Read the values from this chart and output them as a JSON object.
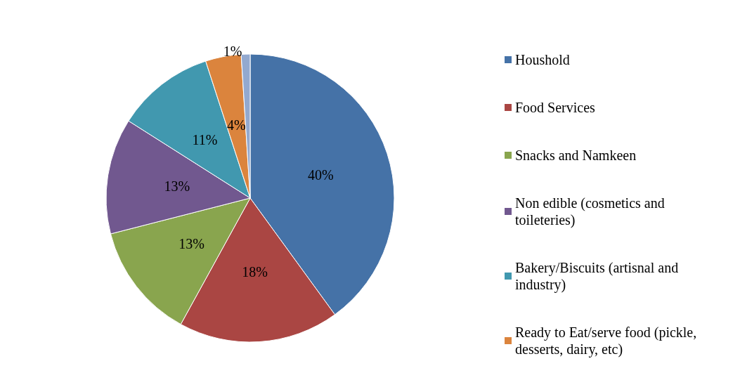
{
  "chart_data": {
    "type": "pie",
    "categories": [
      "Houshold",
      "Food Services",
      "Snacks and Namkeen",
      "Non edible (cosmetics and toileteries)",
      "Bakery/Biscuits (artisnal and industry)",
      "Ready to Eat/serve food (pickle, desserts, dairy, etc)",
      null
    ],
    "values": [
      40,
      18,
      13,
      13,
      11,
      4,
      1
    ],
    "colors": [
      "#4572a7",
      "#aa4643",
      "#89a54e",
      "#71588f",
      "#4198af",
      "#db843d",
      "#93a9cf"
    ],
    "value_labels": [
      "40%",
      "18%",
      "13%",
      "13%",
      "11%",
      "4%",
      "1%"
    ],
    "legend": "right"
  }
}
